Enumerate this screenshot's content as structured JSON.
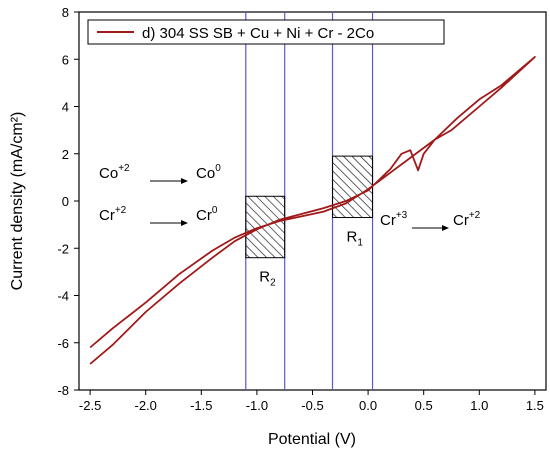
{
  "chart_data": {
    "type": "line",
    "title": "",
    "xlabel": "Potential (V)",
    "ylabel": "Current density (mA/cm²)",
    "xlim": [
      -2.6,
      1.6
    ],
    "ylim": [
      -8,
      8
    ],
    "x_ticks": [
      "-2.5",
      "-2.0",
      "-1.5",
      "-1.0",
      "-0.5",
      "0.0",
      "0.5",
      "1.0",
      "1.5"
    ],
    "y_ticks": [
      "-8",
      "-6",
      "-4",
      "-2",
      "0",
      "2",
      "4",
      "6",
      "8"
    ],
    "legend": {
      "position": "top-left",
      "label": "d) 304 SS SB + Cu + Ni + Cr - 2Co"
    },
    "series_color": "#a01a1a",
    "series": [
      {
        "name": "d) 304 SS SB + Cu + Ni + Cr - 2Co",
        "x": [
          -2.5,
          -2.3,
          -2.0,
          -1.7,
          -1.4,
          -1.2,
          -1.0,
          -0.8,
          -0.6,
          -0.4,
          -0.2,
          0.0,
          0.2,
          0.3,
          0.38,
          0.45,
          0.5,
          0.6,
          0.75,
          1.0,
          1.2,
          1.5,
          1.2,
          1.0,
          0.8,
          0.6,
          0.4,
          0.2,
          0.0,
          -0.2,
          -0.4,
          -0.6,
          -0.8,
          -1.0,
          -1.2,
          -1.4,
          -1.7,
          -2.0,
          -2.3,
          -2.5
        ],
        "y": [
          -6.9,
          -6.1,
          -4.7,
          -3.5,
          -2.4,
          -1.7,
          -1.2,
          -0.8,
          -0.55,
          -0.3,
          0.0,
          0.45,
          1.35,
          2.0,
          2.15,
          1.3,
          2.0,
          2.6,
          3.0,
          4.0,
          4.8,
          6.1,
          4.9,
          4.3,
          3.5,
          2.6,
          1.9,
          1.2,
          0.5,
          -0.1,
          -0.45,
          -0.65,
          -0.85,
          -1.15,
          -1.55,
          -2.1,
          -3.1,
          -4.3,
          -5.4,
          -6.2
        ]
      }
    ],
    "regions": [
      {
        "label": "R",
        "sub": "1",
        "x0": -0.32,
        "x1": 0.04,
        "y0": -0.7,
        "y1": 1.9
      },
      {
        "label": "R",
        "sub": "2",
        "x0": -1.1,
        "x1": -0.75,
        "y0": -2.4,
        "y1": 0.2
      }
    ],
    "vlines": [
      -1.1,
      -0.75,
      -0.32,
      0.04
    ],
    "annotations": [
      {
        "left_base": "Co",
        "left_sup": "+2",
        "right_base": "Co",
        "right_sup": "0"
      },
      {
        "left_base": "Cr",
        "left_sup": "+2",
        "right_base": "Cr",
        "right_sup": "0"
      },
      {
        "left_base": "Cr",
        "left_sup": "+3",
        "right_base": "Cr",
        "right_sup": "+2"
      }
    ]
  }
}
